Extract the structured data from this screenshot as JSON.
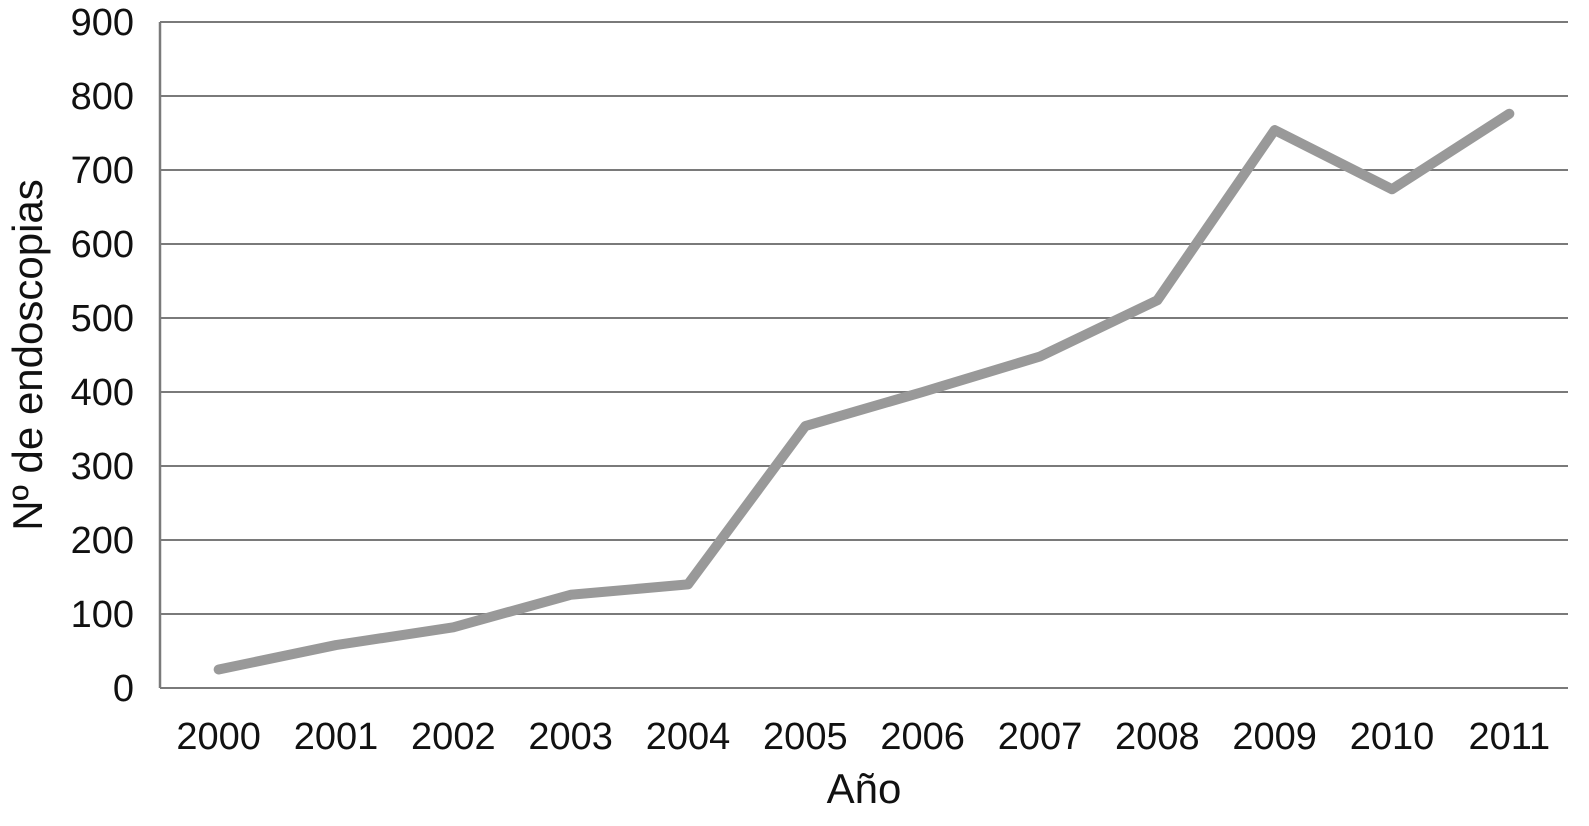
{
  "chart_data": {
    "type": "line",
    "title": "",
    "xlabel": "Año",
    "ylabel": "Nº de endoscopias",
    "categories": [
      "2000",
      "2001",
      "2002",
      "2003",
      "2004",
      "2005",
      "2006",
      "2007",
      "2008",
      "2009",
      "2010",
      "2011"
    ],
    "series": [
      {
        "values": [
          25,
          58,
          82,
          126,
          140,
          354,
          400,
          448,
          524,
          754,
          674,
          776
        ],
        "color": "#999999"
      }
    ],
    "ylim": [
      0,
      900
    ],
    "yticks": [
      "0",
      "100",
      "200",
      "300",
      "400",
      "500",
      "600",
      "700",
      "800",
      "900"
    ],
    "grid": "horizontal",
    "legend": "none"
  }
}
